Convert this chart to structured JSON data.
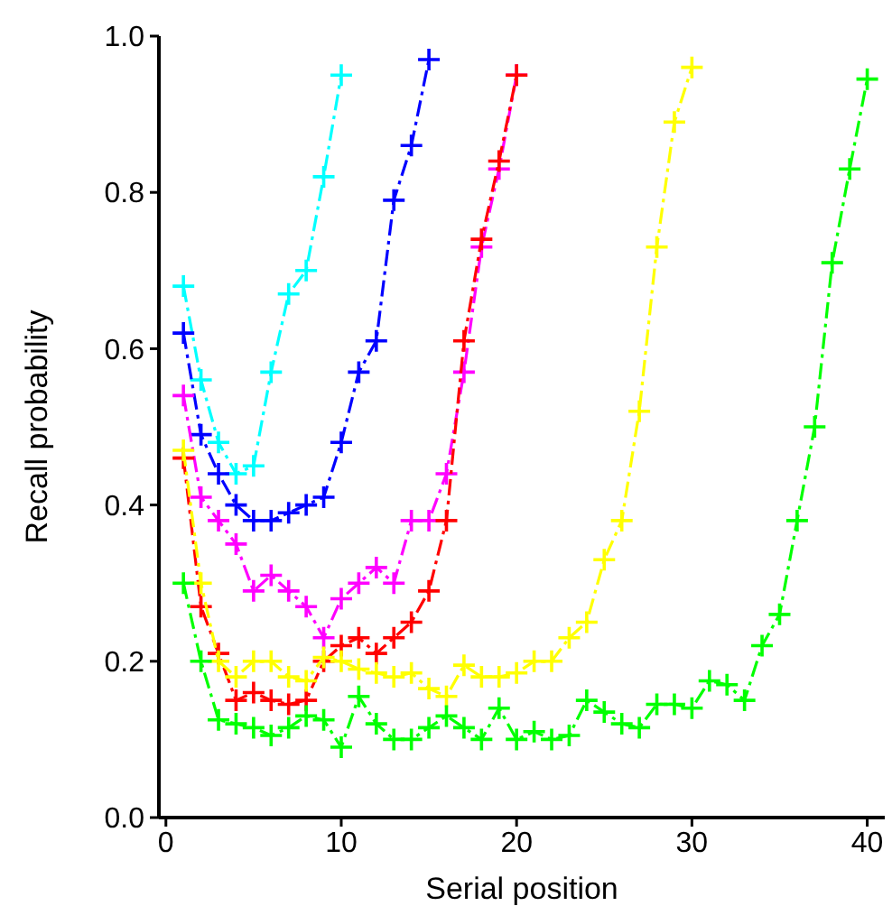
{
  "chart_data": {
    "type": "line",
    "xlabel": "Serial position",
    "ylabel": "Recall probability",
    "xlim": [
      -0.4,
      41
    ],
    "ylim": [
      0,
      1
    ],
    "xticks": [
      0,
      10,
      20,
      30,
      40
    ],
    "yticks": [
      {
        "value": 0,
        "label": "0.0"
      },
      {
        "value": 0.2,
        "label": "0.2"
      },
      {
        "value": 0.4,
        "label": "0.4"
      },
      {
        "value": 0.6,
        "label": "0.6"
      },
      {
        "value": 0.8,
        "label": "0.8"
      },
      {
        "value": 1,
        "label": "1.0"
      }
    ],
    "marker": "cross",
    "line_style": "dashed",
    "grid": false,
    "series": [
      {
        "color": "#00ffff",
        "x": [
          1,
          2,
          3,
          4,
          5,
          6,
          7,
          8,
          9,
          10
        ],
        "values": [
          0.68,
          0.56,
          0.48,
          0.44,
          0.45,
          0.57,
          0.67,
          0.7,
          0.82,
          0.95
        ]
      },
      {
        "color": "#0000ff",
        "x": [
          1,
          2,
          3,
          4,
          5,
          6,
          7,
          8,
          9,
          10,
          11,
          12,
          13,
          14,
          15
        ],
        "values": [
          0.62,
          0.49,
          0.44,
          0.4,
          0.38,
          0.38,
          0.39,
          0.4,
          0.41,
          0.48,
          0.57,
          0.61,
          0.79,
          0.86,
          0.97
        ]
      },
      {
        "color": "#ff00ff",
        "x": [
          1,
          2,
          3,
          4,
          5,
          6,
          7,
          8,
          9,
          10,
          11,
          12,
          13,
          14,
          15,
          16,
          17,
          18,
          19,
          20
        ],
        "values": [
          0.54,
          0.41,
          0.38,
          0.35,
          0.29,
          0.31,
          0.29,
          0.27,
          0.23,
          0.28,
          0.3,
          0.32,
          0.3,
          0.38,
          0.38,
          0.44,
          0.57,
          0.73,
          0.83,
          0.95
        ]
      },
      {
        "color": "#ff0000",
        "x": [
          1,
          2,
          3,
          4,
          5,
          6,
          7,
          8,
          9,
          10,
          11,
          12,
          13,
          14,
          15,
          16,
          17,
          18,
          19,
          20
        ],
        "values": [
          0.46,
          0.27,
          0.21,
          0.15,
          0.16,
          0.15,
          0.145,
          0.15,
          0.2,
          0.22,
          0.23,
          0.21,
          0.23,
          0.25,
          0.29,
          0.38,
          0.61,
          0.74,
          0.84,
          0.95
        ]
      },
      {
        "color": "#ffff00",
        "x": [
          1,
          2,
          3,
          4,
          5,
          6,
          7,
          8,
          9,
          10,
          11,
          12,
          13,
          14,
          15,
          16,
          17,
          18,
          19,
          20,
          21,
          22,
          23,
          24,
          25,
          26,
          27,
          28,
          29,
          30
        ],
        "values": [
          0.47,
          0.3,
          0.2,
          0.18,
          0.2,
          0.2,
          0.18,
          0.175,
          0.205,
          0.2,
          0.19,
          0.185,
          0.18,
          0.185,
          0.165,
          0.155,
          0.195,
          0.18,
          0.18,
          0.185,
          0.2,
          0.2,
          0.23,
          0.25,
          0.33,
          0.38,
          0.52,
          0.73,
          0.89,
          0.96
        ]
      },
      {
        "color": "#00ff00",
        "x": [
          1,
          2,
          3,
          4,
          5,
          6,
          7,
          8,
          9,
          10,
          11,
          12,
          13,
          14,
          15,
          16,
          17,
          18,
          19,
          20,
          21,
          22,
          23,
          24,
          25,
          26,
          27,
          28,
          29,
          30,
          31,
          32,
          33,
          34,
          35,
          36,
          37,
          38,
          39,
          40
        ],
        "values": [
          0.3,
          0.2,
          0.125,
          0.12,
          0.115,
          0.105,
          0.115,
          0.13,
          0.125,
          0.09,
          0.155,
          0.12,
          0.1,
          0.1,
          0.115,
          0.13,
          0.115,
          0.1,
          0.14,
          0.1,
          0.11,
          0.1,
          0.105,
          0.15,
          0.135,
          0.12,
          0.115,
          0.145,
          0.145,
          0.14,
          0.175,
          0.17,
          0.15,
          0.22,
          0.26,
          0.38,
          0.5,
          0.71,
          0.83,
          0.945
        ]
      }
    ]
  }
}
